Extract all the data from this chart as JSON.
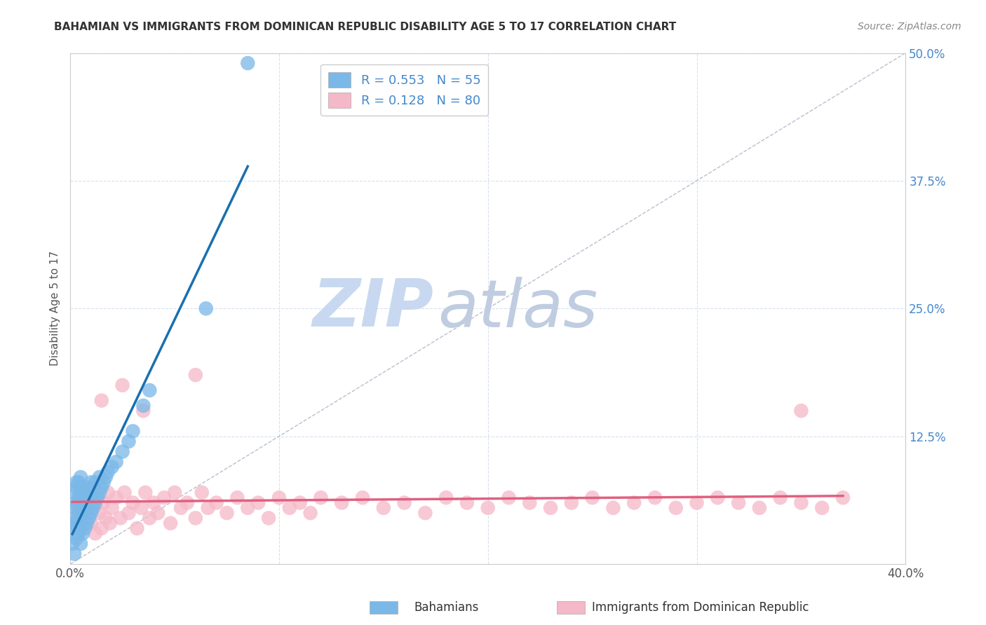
{
  "title": "BAHAMIAN VS IMMIGRANTS FROM DOMINICAN REPUBLIC DISABILITY AGE 5 TO 17 CORRELATION CHART",
  "source": "Source: ZipAtlas.com",
  "ylabel": "Disability Age 5 to 17",
  "xlim": [
    0.0,
    0.4
  ],
  "ylim": [
    0.0,
    0.5
  ],
  "xticks": [
    0.0,
    0.1,
    0.2,
    0.3,
    0.4
  ],
  "yticks": [
    0.0,
    0.125,
    0.25,
    0.375,
    0.5
  ],
  "blue_R": 0.553,
  "blue_N": 55,
  "pink_R": 0.128,
  "pink_N": 80,
  "blue_color": "#7ab8e8",
  "pink_color": "#f5b8c8",
  "blue_line_color": "#1a6faf",
  "pink_line_color": "#e06080",
  "watermark_zip_color": "#c8d8f0",
  "watermark_atlas_color": "#c0cce0",
  "background_color": "#ffffff",
  "grid_color": "#d8e0ee",
  "legend_label_blue": "Bahamians",
  "legend_label_pink": "Immigrants from Dominican Republic",
  "blue_scatter_x": [
    0.001,
    0.001,
    0.002,
    0.002,
    0.002,
    0.002,
    0.003,
    0.003,
    0.003,
    0.003,
    0.003,
    0.004,
    0.004,
    0.004,
    0.004,
    0.005,
    0.005,
    0.005,
    0.005,
    0.005,
    0.006,
    0.006,
    0.006,
    0.006,
    0.007,
    0.007,
    0.007,
    0.008,
    0.008,
    0.008,
    0.009,
    0.009,
    0.01,
    0.01,
    0.01,
    0.011,
    0.011,
    0.012,
    0.012,
    0.013,
    0.014,
    0.014,
    0.015,
    0.016,
    0.017,
    0.018,
    0.02,
    0.022,
    0.025,
    0.028,
    0.03,
    0.035,
    0.038,
    0.065,
    0.085
  ],
  "blue_scatter_y": [
    0.02,
    0.035,
    0.01,
    0.04,
    0.055,
    0.07,
    0.025,
    0.045,
    0.06,
    0.075,
    0.08,
    0.03,
    0.05,
    0.065,
    0.08,
    0.02,
    0.04,
    0.055,
    0.07,
    0.085,
    0.03,
    0.05,
    0.065,
    0.075,
    0.035,
    0.055,
    0.07,
    0.04,
    0.06,
    0.075,
    0.045,
    0.065,
    0.05,
    0.065,
    0.08,
    0.055,
    0.075,
    0.06,
    0.08,
    0.065,
    0.07,
    0.085,
    0.075,
    0.08,
    0.085,
    0.09,
    0.095,
    0.1,
    0.11,
    0.12,
    0.13,
    0.155,
    0.17,
    0.25,
    0.49
  ],
  "pink_scatter_x": [
    0.001,
    0.002,
    0.003,
    0.004,
    0.005,
    0.006,
    0.007,
    0.008,
    0.009,
    0.01,
    0.011,
    0.012,
    0.013,
    0.014,
    0.015,
    0.016,
    0.017,
    0.018,
    0.019,
    0.02,
    0.022,
    0.024,
    0.026,
    0.028,
    0.03,
    0.032,
    0.034,
    0.036,
    0.038,
    0.04,
    0.042,
    0.045,
    0.048,
    0.05,
    0.053,
    0.056,
    0.06,
    0.063,
    0.066,
    0.07,
    0.075,
    0.08,
    0.085,
    0.09,
    0.095,
    0.1,
    0.105,
    0.11,
    0.115,
    0.12,
    0.13,
    0.14,
    0.15,
    0.16,
    0.17,
    0.18,
    0.19,
    0.2,
    0.21,
    0.22,
    0.23,
    0.24,
    0.25,
    0.26,
    0.27,
    0.28,
    0.29,
    0.3,
    0.31,
    0.32,
    0.33,
    0.34,
    0.35,
    0.36,
    0.37,
    0.015,
    0.025,
    0.035,
    0.06,
    0.35
  ],
  "pink_scatter_y": [
    0.04,
    0.055,
    0.03,
    0.06,
    0.035,
    0.05,
    0.065,
    0.045,
    0.07,
    0.04,
    0.055,
    0.03,
    0.065,
    0.05,
    0.035,
    0.06,
    0.045,
    0.07,
    0.04,
    0.055,
    0.065,
    0.045,
    0.07,
    0.05,
    0.06,
    0.035,
    0.055,
    0.07,
    0.045,
    0.06,
    0.05,
    0.065,
    0.04,
    0.07,
    0.055,
    0.06,
    0.045,
    0.07,
    0.055,
    0.06,
    0.05,
    0.065,
    0.055,
    0.06,
    0.045,
    0.065,
    0.055,
    0.06,
    0.05,
    0.065,
    0.06,
    0.065,
    0.055,
    0.06,
    0.05,
    0.065,
    0.06,
    0.055,
    0.065,
    0.06,
    0.055,
    0.06,
    0.065,
    0.055,
    0.06,
    0.065,
    0.055,
    0.06,
    0.065,
    0.06,
    0.055,
    0.065,
    0.06,
    0.055,
    0.065,
    0.16,
    0.175,
    0.15,
    0.185,
    0.15
  ]
}
